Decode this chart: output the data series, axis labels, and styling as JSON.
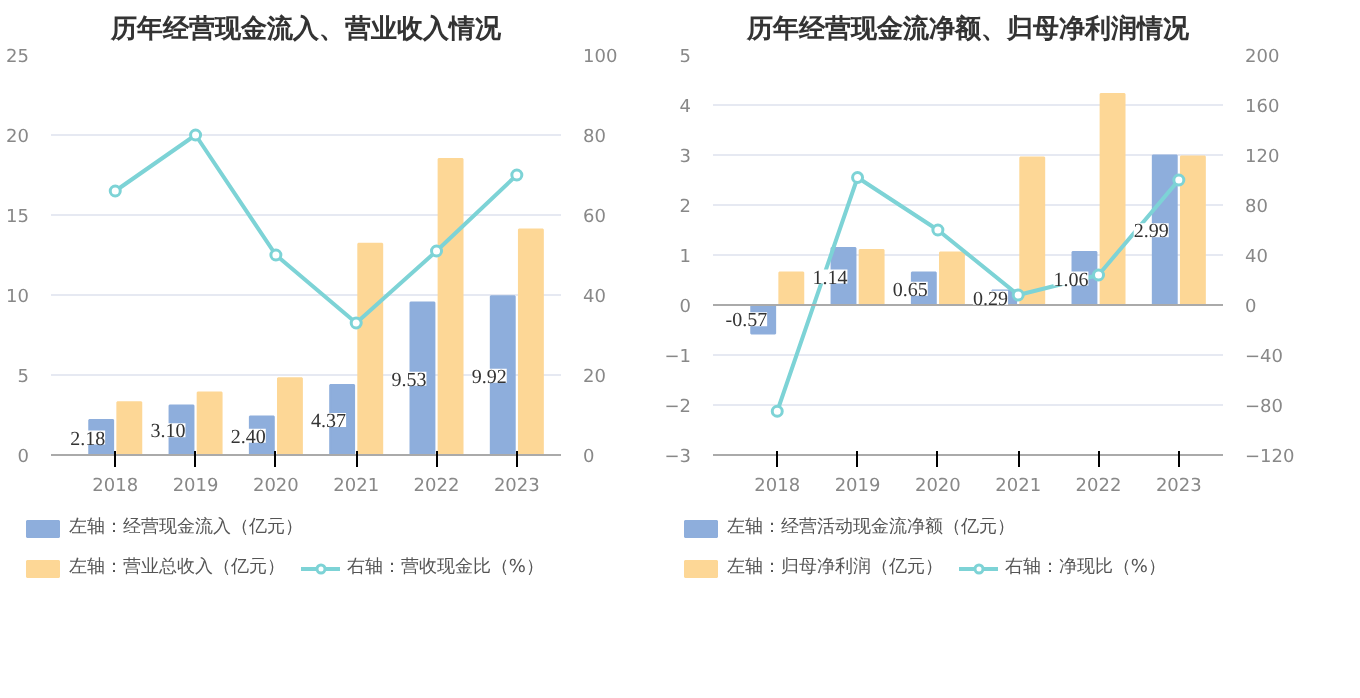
{
  "chart_data": [
    {
      "type": "bar",
      "title": "历年经营现金流入、营业收入情况",
      "categories": [
        "2018",
        "2019",
        "2020",
        "2021",
        "2022",
        "2023"
      ],
      "ylim": [
        0,
        25
      ],
      "yticks": [
        0,
        5,
        10,
        15,
        20,
        25
      ],
      "y2lim": [
        0,
        100
      ],
      "y2ticks": [
        0,
        20,
        40,
        60,
        80,
        100
      ],
      "grid": "y",
      "legend": "bottom",
      "series": [
        {
          "name": "左轴：经营现金流入（亿元）",
          "color": "#8eaedc",
          "values": [
            2.18,
            3.1,
            2.4,
            4.37,
            9.53,
            9.92
          ],
          "value_labels": [
            "2.18",
            "3.10",
            "2.40",
            "4.37",
            "9.53",
            "9.92"
          ]
        },
        {
          "name": "左轴：营业总收入（亿元）",
          "color": "#fdd796",
          "values": [
            3.3,
            3.9,
            4.8,
            13.2,
            18.5,
            14.1
          ]
        },
        {
          "name": "右轴：营收现金比（%）",
          "type": "line",
          "axis": "y2",
          "color": "#7dd3d6",
          "marker": "circle",
          "values": [
            66,
            80,
            50,
            33,
            51,
            70
          ]
        }
      ]
    },
    {
      "type": "bar",
      "title": "历年经营现金流净额、归母净利润情况",
      "categories": [
        "2018",
        "2019",
        "2020",
        "2021",
        "2022",
        "2023"
      ],
      "ylim": [
        -3,
        5
      ],
      "yticks": [
        -3,
        -2,
        -1,
        0,
        1,
        2,
        3,
        4,
        5
      ],
      "y2lim": [
        -120,
        200
      ],
      "y2ticks": [
        -120,
        -80,
        -40,
        0,
        40,
        80,
        120,
        160,
        200
      ],
      "grid": "y",
      "legend": "bottom",
      "series": [
        {
          "name": "左轴：经营活动现金流净额（亿元）",
          "color": "#8eaedc",
          "values": [
            -0.57,
            1.14,
            0.65,
            0.29,
            1.06,
            2.99
          ],
          "value_labels": [
            "-0.57",
            "1.14",
            "0.65",
            "0.29",
            "1.06",
            "2.99"
          ]
        },
        {
          "name": "左轴：归母净利润（亿元）",
          "color": "#fdd796",
          "values": [
            0.65,
            1.1,
            1.05,
            2.95,
            4.22,
            2.97
          ]
        },
        {
          "name": "右轴：净现比（%）",
          "type": "line",
          "axis": "y2",
          "color": "#7dd3d6",
          "marker": "circle",
          "values": [
            -85,
            102,
            60,
            8,
            24,
            100
          ]
        }
      ]
    }
  ]
}
